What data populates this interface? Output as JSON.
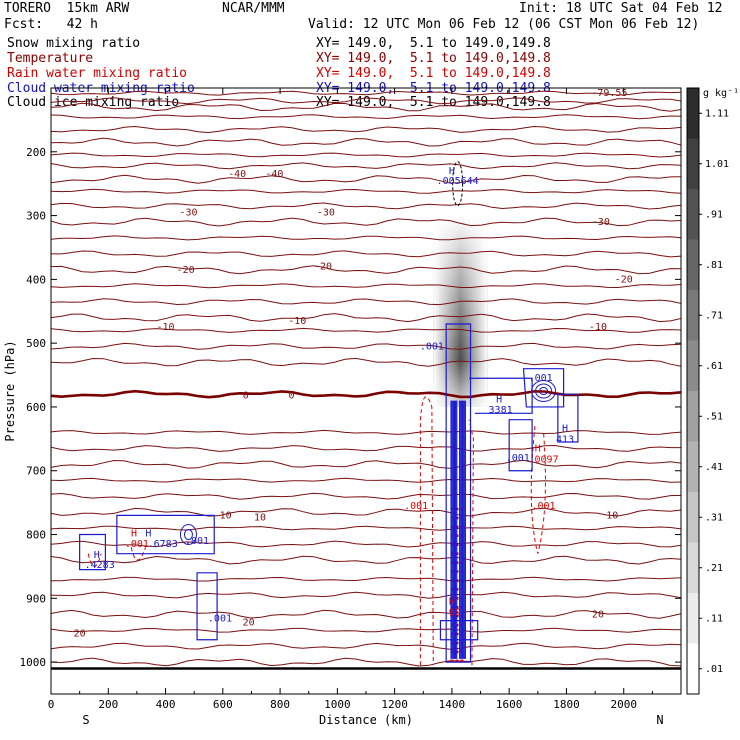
{
  "header": {
    "model": "TORERO  15km ARW",
    "center": "NCAR/MMM",
    "init": "Init: 18 UTC Sat 04 Feb 12",
    "fcst": "Fcst:   42 h",
    "valid": "Valid: 12 UTC Mon 06 Feb 12 (06 CST Mon 06 Feb 12)"
  },
  "fields": [
    {
      "name": "Snow mixing ratio",
      "color": "#000000",
      "xy": "XY= 149.0,  5.1 to 149.0,149.8"
    },
    {
      "name": "Temperature",
      "color": "#8b0000",
      "xy": "XY= 149.0,  5.1 to 149.0,149.8"
    },
    {
      "name": "Rain water mixing ratio",
      "color": "#d40000",
      "xy": "XY= 149.0,  5.1 to 149.0,149.8"
    },
    {
      "name": "Cloud water mixing ratio",
      "color": "#1010c8",
      "xy": "XY= 149.0,  5.1 to 149.0,149.8"
    },
    {
      "name": "Cloud ice mixing ratio",
      "color": "#000000",
      "xy": "XY= 149.0,  5.1 to 149.0,149.8"
    }
  ],
  "colors": {
    "temperature": "#7a1010",
    "zero_isotherm": "#7a0000",
    "rain": "#e00000",
    "cloud_water": "#1a1ad0",
    "snow_shade": "#000000"
  },
  "chart_data": {
    "type": "contour",
    "xlabel": "Distance (km)",
    "ylabel": "Pressure (hPa)",
    "xlim": [
      0,
      2200
    ],
    "ylim": [
      1050,
      100
    ],
    "x_ticks": [
      0,
      200,
      400,
      600,
      800,
      1000,
      1200,
      1400,
      1600,
      1800,
      2000
    ],
    "y_ticks": [
      200,
      300,
      400,
      500,
      600,
      700,
      800,
      900,
      1000
    ],
    "x_end_labels": {
      "left": "S",
      "right": "N"
    },
    "colorbar": {
      "unit": "g kg⁻¹",
      "levels": [
        ".01",
        ".11",
        ".21",
        ".31",
        ".41",
        ".51",
        ".61",
        ".71",
        ".81",
        ".91",
        "1.01",
        "1.11"
      ]
    },
    "temperature_contours": [
      {
        "label": "-79.55",
        "label_pos": [
          1950,
          108
        ]
      },
      {
        "label": "-40",
        "label_pos": [
          [
            650,
            235
          ],
          [
            780,
            235
          ]
        ]
      },
      {
        "label": "-30",
        "label_pos": [
          [
            480,
            295
          ],
          [
            960,
            295
          ],
          [
            1920,
            310
          ]
        ]
      },
      {
        "label": "-20",
        "label_pos": [
          [
            470,
            385
          ],
          [
            950,
            380
          ],
          [
            2000,
            400
          ]
        ]
      },
      {
        "label": "-10",
        "label_pos": [
          [
            400,
            475
          ],
          [
            860,
            465
          ],
          [
            1910,
            475
          ]
        ]
      },
      {
        "label": "0",
        "label_pos": [
          [
            680,
            582
          ],
          [
            840,
            582
          ]
        ]
      },
      {
        "label": "10",
        "label_pos": [
          [
            610,
            770
          ],
          [
            730,
            773
          ],
          [
            1960,
            770
          ]
        ]
      },
      {
        "label": "20",
        "label_pos": [
          [
            100,
            955
          ],
          [
            690,
            938
          ],
          [
            1910,
            925
          ]
        ]
      }
    ],
    "cloud_water_labels": [
      {
        "text": ".001",
        "pos": [
          1330,
          505
        ]
      },
      {
        "text": ".001",
        "pos": [
          1710,
          555
        ]
      },
      {
        "text": "3381",
        "pos": [
          1570,
          605
        ]
      },
      {
        "text": "H",
        "pos": [
          1565,
          588
        ]
      },
      {
        "text": "413",
        "pos": [
          1795,
          651
        ]
      },
      {
        "text": "H",
        "pos": [
          1795,
          634
        ]
      },
      {
        "text": ".001",
        "pos": [
          1630,
          680
        ]
      },
      {
        "text": ".001",
        "pos": [
          510,
          810
        ]
      },
      {
        "text": ".001",
        "pos": [
          590,
          932
        ]
      },
      {
        "text": ".4283",
        "pos": [
          170,
          848
        ]
      },
      {
        "text": "H",
        "pos": [
          160,
          832
        ]
      },
      {
        "text": "H",
        "pos": [
          340,
          798
        ]
      },
      {
        "text": ".6783",
        "pos": [
          390,
          815
        ]
      },
      {
        "text": ".005644",
        "pos": [
          1420,
          246
        ]
      },
      {
        "text": "H",
        "pos": [
          1400,
          230
        ]
      }
    ],
    "rain_labels": [
      {
        "text": ".001",
        "pos": [
          1275,
          755
        ]
      },
      {
        "text": ".001",
        "pos": [
          1720,
          755
        ]
      },
      {
        "text": "H",
        "pos": [
          1700,
          665
        ]
      },
      {
        "text": ".0097",
        "pos": [
          1720,
          682
        ]
      },
      {
        "text": "H",
        "pos": [
          290,
          798
        ]
      },
      {
        "text": ".001",
        "pos": [
          300,
          815
        ]
      },
      {
        "text": "H",
        "pos": [
          1400,
          905
        ]
      },
      {
        "text": "90",
        "pos": [
          1410,
          922
        ]
      }
    ],
    "snow_column": {
      "x_center": 1430,
      "p_top": 300,
      "p_bottom": 600,
      "peak": 0.9
    }
  }
}
